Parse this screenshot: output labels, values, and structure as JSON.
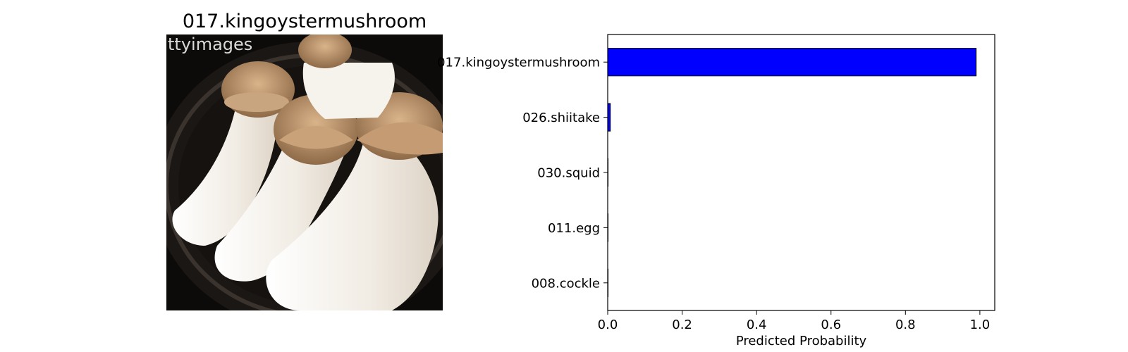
{
  "photo": {
    "title": "017.kingoystermushroom",
    "subject": "king oyster mushrooms on a dark pan",
    "watermark": "ttyimages"
  },
  "colors": {
    "bar_fill": "#0000ff",
    "bar_edge": "#000000",
    "pan": "#1a1512",
    "mushroom_stem": "#f3efe9",
    "mushroom_cap": "#b58d66"
  },
  "chart_data": {
    "type": "bar",
    "orientation": "horizontal",
    "title": "",
    "xlabel": "Predicted Probability",
    "ylabel": "",
    "xlim": [
      0.0,
      1.04
    ],
    "xticks": [
      0.0,
      0.2,
      0.4,
      0.6,
      0.8,
      1.0
    ],
    "xtick_labels": [
      "0.0",
      "0.2",
      "0.4",
      "0.6",
      "0.8",
      "1.0"
    ],
    "categories": [
      "017.kingoystermushroom",
      "026.shiitake",
      "030.squid",
      "011.egg",
      "008.cockle"
    ],
    "values": [
      0.99,
      0.007,
      0.001,
      0.001,
      0.001
    ],
    "grid": false,
    "legend": "none"
  }
}
